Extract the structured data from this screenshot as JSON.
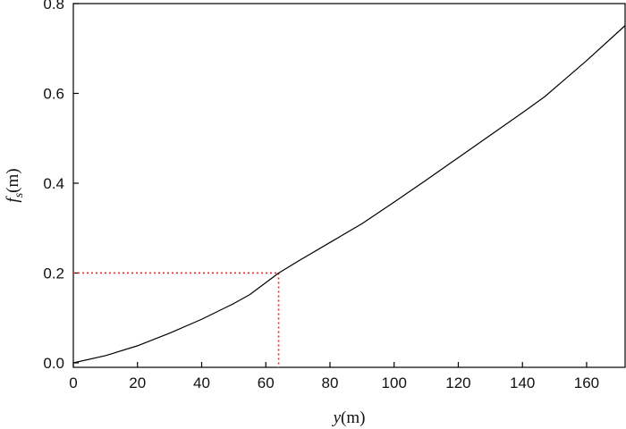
{
  "chart_data": {
    "type": "line",
    "title": "",
    "xlabel": {
      "var": "y",
      "unit": "(m)"
    },
    "ylabel": {
      "var": "f",
      "sub": "s",
      "unit": "(m)"
    },
    "xlim": [
      0,
      172
    ],
    "ylim": [
      -0.01,
      0.8
    ],
    "x_ticks": [
      0,
      20,
      40,
      60,
      80,
      100,
      120,
      140,
      160
    ],
    "y_ticks": [
      0.0,
      0.2,
      0.4,
      0.6,
      0.8
    ],
    "x_tick_labels": [
      "0",
      "20",
      "40",
      "60",
      "80",
      "100",
      "120",
      "140",
      "160"
    ],
    "y_tick_labels": [
      "0.0",
      "0.2",
      "0.4",
      "0.6",
      "0.8"
    ],
    "grid": false,
    "line_color": "#000000",
    "series": [
      {
        "x": [
          0,
          10,
          20,
          30,
          40,
          50,
          55,
          64,
          70,
          80,
          90,
          100,
          110,
          120,
          130,
          140,
          147,
          160,
          172
        ],
        "y": [
          0.0,
          0.016,
          0.038,
          0.066,
          0.097,
          0.132,
          0.152,
          0.2,
          0.226,
          0.268,
          0.31,
          0.358,
          0.407,
          0.457,
          0.507,
          0.557,
          0.593,
          0.673,
          0.751
        ]
      }
    ],
    "reference": {
      "x": 64,
      "y": 0.2,
      "color": "#e8282d"
    }
  }
}
